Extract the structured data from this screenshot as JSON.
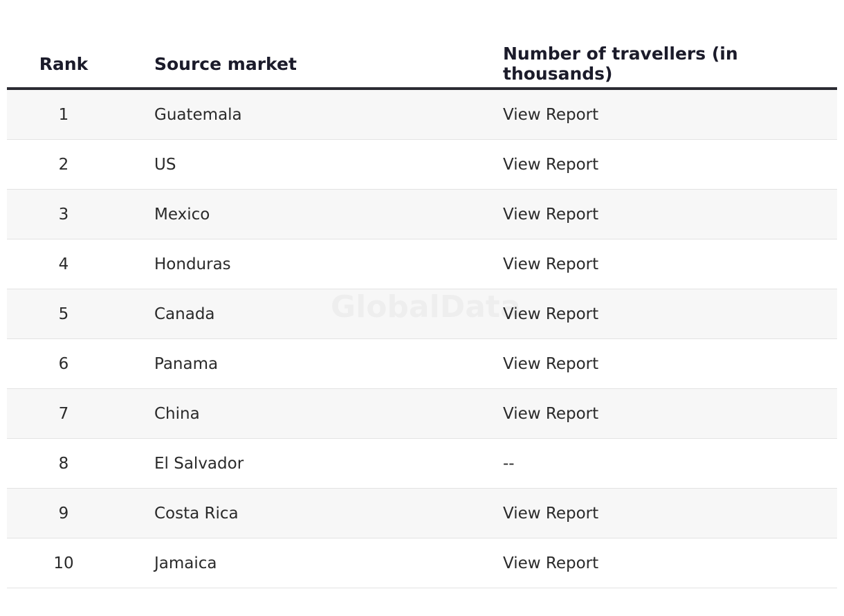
{
  "table": {
    "header": [
      "Rank",
      "Source market",
      "Number of travellers (in thousands)"
    ],
    "rows": [
      [
        1,
        "Guatemala",
        "View Report"
      ],
      [
        2,
        "US",
        "View Report"
      ],
      [
        3,
        "Mexico",
        "View Report"
      ],
      [
        4,
        "Honduras",
        "View Report"
      ],
      [
        5,
        "Canada",
        "View Report"
      ],
      [
        6,
        "Panama",
        "View Report"
      ],
      [
        7,
        "China",
        "View Report"
      ],
      [
        8,
        "El Salvador",
        "--"
      ],
      [
        9,
        "Costa Rica",
        "View Report"
      ],
      [
        10,
        "Jamaica",
        "View Report"
      ]
    ]
  },
  "watermark": "GlobalData"
}
